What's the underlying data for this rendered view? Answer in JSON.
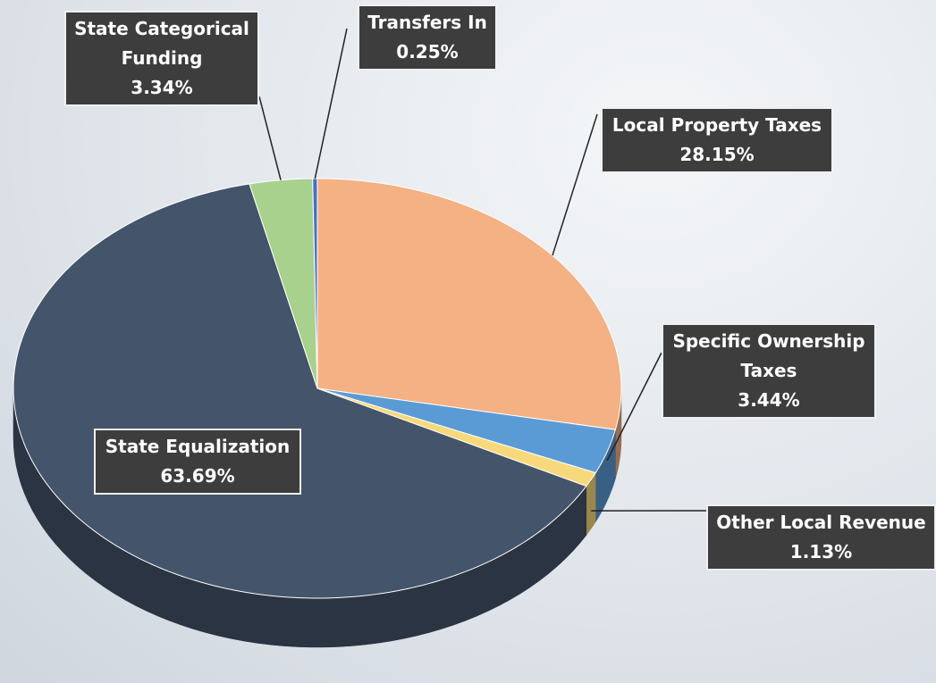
{
  "chart_data": {
    "type": "pie",
    "categories": [
      "Local Property Taxes",
      "Specific Ownership Taxes",
      "Other Local Revenue",
      "State Equalization",
      "State Categorical Funding",
      "Transfers In"
    ],
    "values": [
      28.15,
      3.44,
      1.13,
      63.69,
      3.34,
      0.25
    ],
    "value_labels": [
      "28.15%",
      "3.44%",
      "1.13%",
      "63.69%",
      "3.34%",
      "0.25%"
    ],
    "colors": [
      "#f4b183",
      "#5b9bd5",
      "#f7d97c",
      "#44546a",
      "#a9d18e",
      "#4472c4"
    ]
  }
}
